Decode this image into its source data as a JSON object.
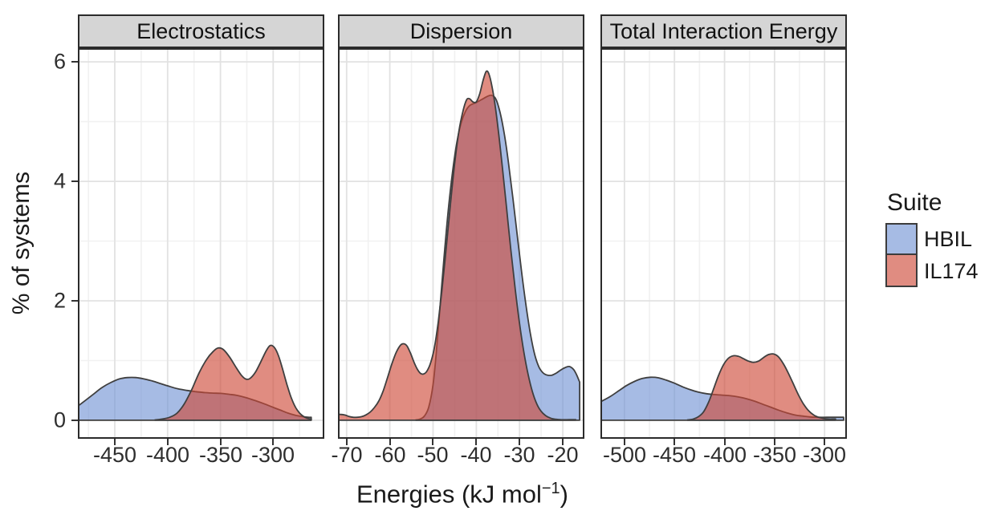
{
  "figure": {
    "background": "#ffffff",
    "ylabel": "% of systems",
    "xlabel_pre": "Energies (kJ mol",
    "xlabel_sup": "−1",
    "xlabel_post": ")",
    "colors": {
      "hbil_fill": "rgba(114,147,212,0.63)",
      "il174_fill": "rgba(206,73,56,0.63)",
      "curve_outline": "#3f3f3f",
      "grid_major": "#e2e2e2",
      "grid_minor": "#f1f1f1",
      "panel_border": "#2b2b2b",
      "strip_bg": "#d5d5d5",
      "axis_text": "#2e2e2e",
      "tick_mark": "#333333"
    },
    "legend": {
      "title": "Suite",
      "entries": [
        {
          "label": "HBIL",
          "series": "HBIL"
        },
        {
          "label": "IL174",
          "series": "IL174"
        }
      ]
    }
  },
  "chart_data": {
    "type": "area",
    "subtype": "faceted-density",
    "title": "",
    "xlabel": "Energies (kJ mol−1)",
    "ylabel": "% of systems",
    "legend_title": "Suite",
    "legend_position": "right",
    "grid": true,
    "ylim": [
      -0.31,
      6.23
    ],
    "yticks_major": [
      0,
      2,
      4,
      6
    ],
    "yticks_minor": [
      1,
      3,
      5
    ],
    "series_style": {
      "HBIL": {
        "fill": "rgba(114,147,212,0.63)"
      },
      "IL174": {
        "fill": "rgba(206,73,56,0.63)"
      }
    },
    "panels": [
      {
        "title": "Electrostatics",
        "xlim": [
          -485,
          -251.6
        ],
        "xticks": [
          -450,
          -400,
          -350,
          -300
        ],
        "xgrid_minor": [
          -475,
          -425,
          -375,
          -325,
          -275
        ],
        "series": [
          {
            "name": "HBIL",
            "points": [
              [
                -484.8,
                0.24
              ],
              [
                -478,
                0.33
              ],
              [
                -470,
                0.44
              ],
              [
                -462,
                0.55
              ],
              [
                -454,
                0.63
              ],
              [
                -446,
                0.69
              ],
              [
                -438,
                0.715
              ],
              [
                -430,
                0.715
              ],
              [
                -422,
                0.69
              ],
              [
                -414,
                0.655
              ],
              [
                -406,
                0.61
              ],
              [
                -398,
                0.565
              ],
              [
                -390,
                0.525
              ],
              [
                -382,
                0.5
              ],
              [
                -374,
                0.48
              ],
              [
                -366,
                0.465
              ],
              [
                -358,
                0.455
              ],
              [
                -350,
                0.45
              ],
              [
                -342,
                0.435
              ],
              [
                -334,
                0.415
              ],
              [
                -326,
                0.38
              ],
              [
                -318,
                0.335
              ],
              [
                -310,
                0.285
              ],
              [
                -302,
                0.23
              ],
              [
                -294,
                0.175
              ],
              [
                -286,
                0.12
              ],
              [
                -278,
                0.08
              ],
              [
                -272,
                0.06
              ],
              [
                -267,
                0.05
              ],
              [
                -264,
                0.05
              ]
            ]
          },
          {
            "name": "IL174",
            "points": [
              [
                -412,
                0.005
              ],
              [
                -405,
                0.02
              ],
              [
                -398,
                0.05
              ],
              [
                -391,
                0.12
              ],
              [
                -384,
                0.28
              ],
              [
                -377,
                0.52
              ],
              [
                -370,
                0.8
              ],
              [
                -363,
                1.02
              ],
              [
                -357,
                1.15
              ],
              [
                -352,
                1.21
              ],
              [
                -347,
                1.18
              ],
              [
                -341,
                1.05
              ],
              [
                -335,
                0.88
              ],
              [
                -330,
                0.75
              ],
              [
                -326,
                0.69
              ],
              [
                -322,
                0.7
              ],
              [
                -317,
                0.8
              ],
              [
                -312,
                0.97
              ],
              [
                -307,
                1.15
              ],
              [
                -303,
                1.25
              ],
              [
                -299,
                1.22
              ],
              [
                -295,
                1.08
              ],
              [
                -291,
                0.85
              ],
              [
                -287,
                0.6
              ],
              [
                -283,
                0.38
              ],
              [
                -279,
                0.22
              ],
              [
                -275,
                0.12
              ],
              [
                -271,
                0.06
              ],
              [
                -267,
                0.03
              ],
              [
                -264,
                0.02
              ]
            ]
          }
        ]
      },
      {
        "title": "Dispersion",
        "xlim": [
          -72,
          -15
        ],
        "xticks": [
          -70,
          -60,
          -50,
          -40,
          -30,
          -20
        ],
        "xgrid_minor": [
          -65,
          -55,
          -45,
          -35,
          -25
        ],
        "series": [
          {
            "name": "HBIL",
            "points": [
              [
                -54,
                0.005
              ],
              [
                -53,
                0.02
              ],
              [
                -52,
                0.07
              ],
              [
                -51,
                0.22
              ],
              [
                -50,
                0.6
              ],
              [
                -49.3,
                1.1
              ],
              [
                -48.5,
                1.8
              ],
              [
                -47.5,
                2.7
              ],
              [
                -46.5,
                3.5
              ],
              [
                -45.5,
                4.15
              ],
              [
                -44.5,
                4.65
              ],
              [
                -43.5,
                4.98
              ],
              [
                -42.5,
                5.17
              ],
              [
                -41.5,
                5.27
              ],
              [
                -40,
                5.32
              ],
              [
                -38.5,
                5.38
              ],
              [
                -37.5,
                5.42
              ],
              [
                -36.5,
                5.44
              ],
              [
                -35.5,
                5.38
              ],
              [
                -34.5,
                5.15
              ],
              [
                -33.5,
                4.78
              ],
              [
                -32.5,
                4.28
              ],
              [
                -31.5,
                3.7
              ],
              [
                -30.5,
                3.08
              ],
              [
                -29.5,
                2.47
              ],
              [
                -28.5,
                1.92
              ],
              [
                -27.5,
                1.45
              ],
              [
                -26.5,
                1.1
              ],
              [
                -25.5,
                0.89
              ],
              [
                -24.5,
                0.79
              ],
              [
                -23.5,
                0.755
              ],
              [
                -22.5,
                0.755
              ],
              [
                -21.5,
                0.79
              ],
              [
                -20.5,
                0.84
              ],
              [
                -19.5,
                0.88
              ],
              [
                -18.5,
                0.9
              ],
              [
                -17.5,
                0.85
              ],
              [
                -16.8,
                0.76
              ],
              [
                -16.1,
                0.64
              ]
            ]
          },
          {
            "name": "IL174",
            "points": [
              [
                -72,
                0.1
              ],
              [
                -70.5,
                0.09
              ],
              [
                -69.5,
                0.065
              ],
              [
                -68.5,
                0.05
              ],
              [
                -67.5,
                0.05
              ],
              [
                -66.5,
                0.06
              ],
              [
                -65.5,
                0.09
              ],
              [
                -64.5,
                0.14
              ],
              [
                -63.5,
                0.22
              ],
              [
                -62.5,
                0.33
              ],
              [
                -61.5,
                0.5
              ],
              [
                -60.5,
                0.72
              ],
              [
                -59.5,
                0.95
              ],
              [
                -58.5,
                1.14
              ],
              [
                -57.5,
                1.26
              ],
              [
                -56.7,
                1.28
              ],
              [
                -56,
                1.24
              ],
              [
                -55.2,
                1.12
              ],
              [
                -54.4,
                0.97
              ],
              [
                -53.6,
                0.85
              ],
              [
                -52.8,
                0.78
              ],
              [
                -52,
                0.78
              ],
              [
                -51.2,
                0.85
              ],
              [
                -50.4,
                1.0
              ],
              [
                -49.6,
                1.25
              ],
              [
                -48.8,
                1.65
              ],
              [
                -48,
                2.15
              ],
              [
                -47,
                2.85
              ],
              [
                -46,
                3.6
              ],
              [
                -45,
                4.3
              ],
              [
                -44,
                4.85
              ],
              [
                -43,
                5.2
              ],
              [
                -42.2,
                5.37
              ],
              [
                -41.5,
                5.38
              ],
              [
                -40.8,
                5.33
              ],
              [
                -40,
                5.33
              ],
              [
                -39.2,
                5.47
              ],
              [
                -38.4,
                5.7
              ],
              [
                -37.7,
                5.84
              ],
              [
                -37.1,
                5.8
              ],
              [
                -36.4,
                5.6
              ],
              [
                -35.6,
                5.25
              ],
              [
                -34.8,
                4.78
              ],
              [
                -34,
                4.25
              ],
              [
                -33,
                3.55
              ],
              [
                -32,
                2.85
              ],
              [
                -31,
                2.2
              ],
              [
                -30,
                1.62
              ],
              [
                -29,
                1.14
              ],
              [
                -28,
                0.76
              ],
              [
                -27,
                0.47
              ],
              [
                -26,
                0.27
              ],
              [
                -25,
                0.15
              ],
              [
                -24,
                0.08
              ],
              [
                -23,
                0.04
              ],
              [
                -22,
                0.02
              ],
              [
                -20.5,
                0.01
              ],
              [
                -18.5,
                0.01
              ],
              [
                -17,
                0.01
              ]
            ]
          }
        ]
      },
      {
        "title": "Total Interaction Energy",
        "xlim": [
          -524,
          -277.7
        ],
        "xticks": [
          -500,
          -450,
          -400,
          -350,
          -300
        ],
        "xgrid_minor": [
          -475,
          -425,
          -375,
          -325
        ],
        "series": [
          {
            "name": "HBIL",
            "points": [
              [
                -523.8,
                0.31
              ],
              [
                -514,
                0.4
              ],
              [
                -506,
                0.49
              ],
              [
                -498,
                0.58
              ],
              [
                -490,
                0.65
              ],
              [
                -482,
                0.7
              ],
              [
                -474,
                0.72
              ],
              [
                -466,
                0.71
              ],
              [
                -458,
                0.67
              ],
              [
                -450,
                0.62
              ],
              [
                -442,
                0.56
              ],
              [
                -434,
                0.51
              ],
              [
                -426,
                0.47
              ],
              [
                -418,
                0.445
              ],
              [
                -410,
                0.43
              ],
              [
                -402,
                0.42
              ],
              [
                -394,
                0.41
              ],
              [
                -386,
                0.39
              ],
              [
                -378,
                0.36
              ],
              [
                -370,
                0.32
              ],
              [
                -362,
                0.27
              ],
              [
                -354,
                0.22
              ],
              [
                -346,
                0.17
              ],
              [
                -338,
                0.125
              ],
              [
                -330,
                0.09
              ],
              [
                -322,
                0.07
              ],
              [
                -314,
                0.055
              ],
              [
                -306,
                0.05
              ],
              [
                -298,
                0.05
              ],
              [
                -290,
                0.05
              ],
              [
                -284,
                0.05
              ],
              [
                -281,
                0.05
              ]
            ]
          },
          {
            "name": "IL174",
            "points": [
              [
                -437,
                0.005
              ],
              [
                -431,
                0.02
              ],
              [
                -426,
                0.06
              ],
              [
                -421,
                0.14
              ],
              [
                -416,
                0.3
              ],
              [
                -411,
                0.52
              ],
              [
                -406,
                0.75
              ],
              [
                -401,
                0.93
              ],
              [
                -396,
                1.04
              ],
              [
                -391,
                1.08
              ],
              [
                -386,
                1.07
              ],
              [
                -381,
                1.03
              ],
              [
                -376,
                0.99
              ],
              [
                -371,
                0.97
              ],
              [
                -366,
                0.99
              ],
              [
                -361,
                1.05
              ],
              [
                -356,
                1.1
              ],
              [
                -351,
                1.11
              ],
              [
                -346,
                1.06
              ],
              [
                -341,
                0.94
              ],
              [
                -336,
                0.78
              ],
              [
                -331,
                0.6
              ],
              [
                -326,
                0.42
              ],
              [
                -321,
                0.27
              ],
              [
                -316,
                0.16
              ],
              [
                -311,
                0.09
              ],
              [
                -306,
                0.05
              ],
              [
                -301,
                0.03
              ],
              [
                -296,
                0.02
              ],
              [
                -291,
                0.02
              ],
              [
                -289,
                0.02
              ]
            ]
          }
        ]
      }
    ]
  }
}
